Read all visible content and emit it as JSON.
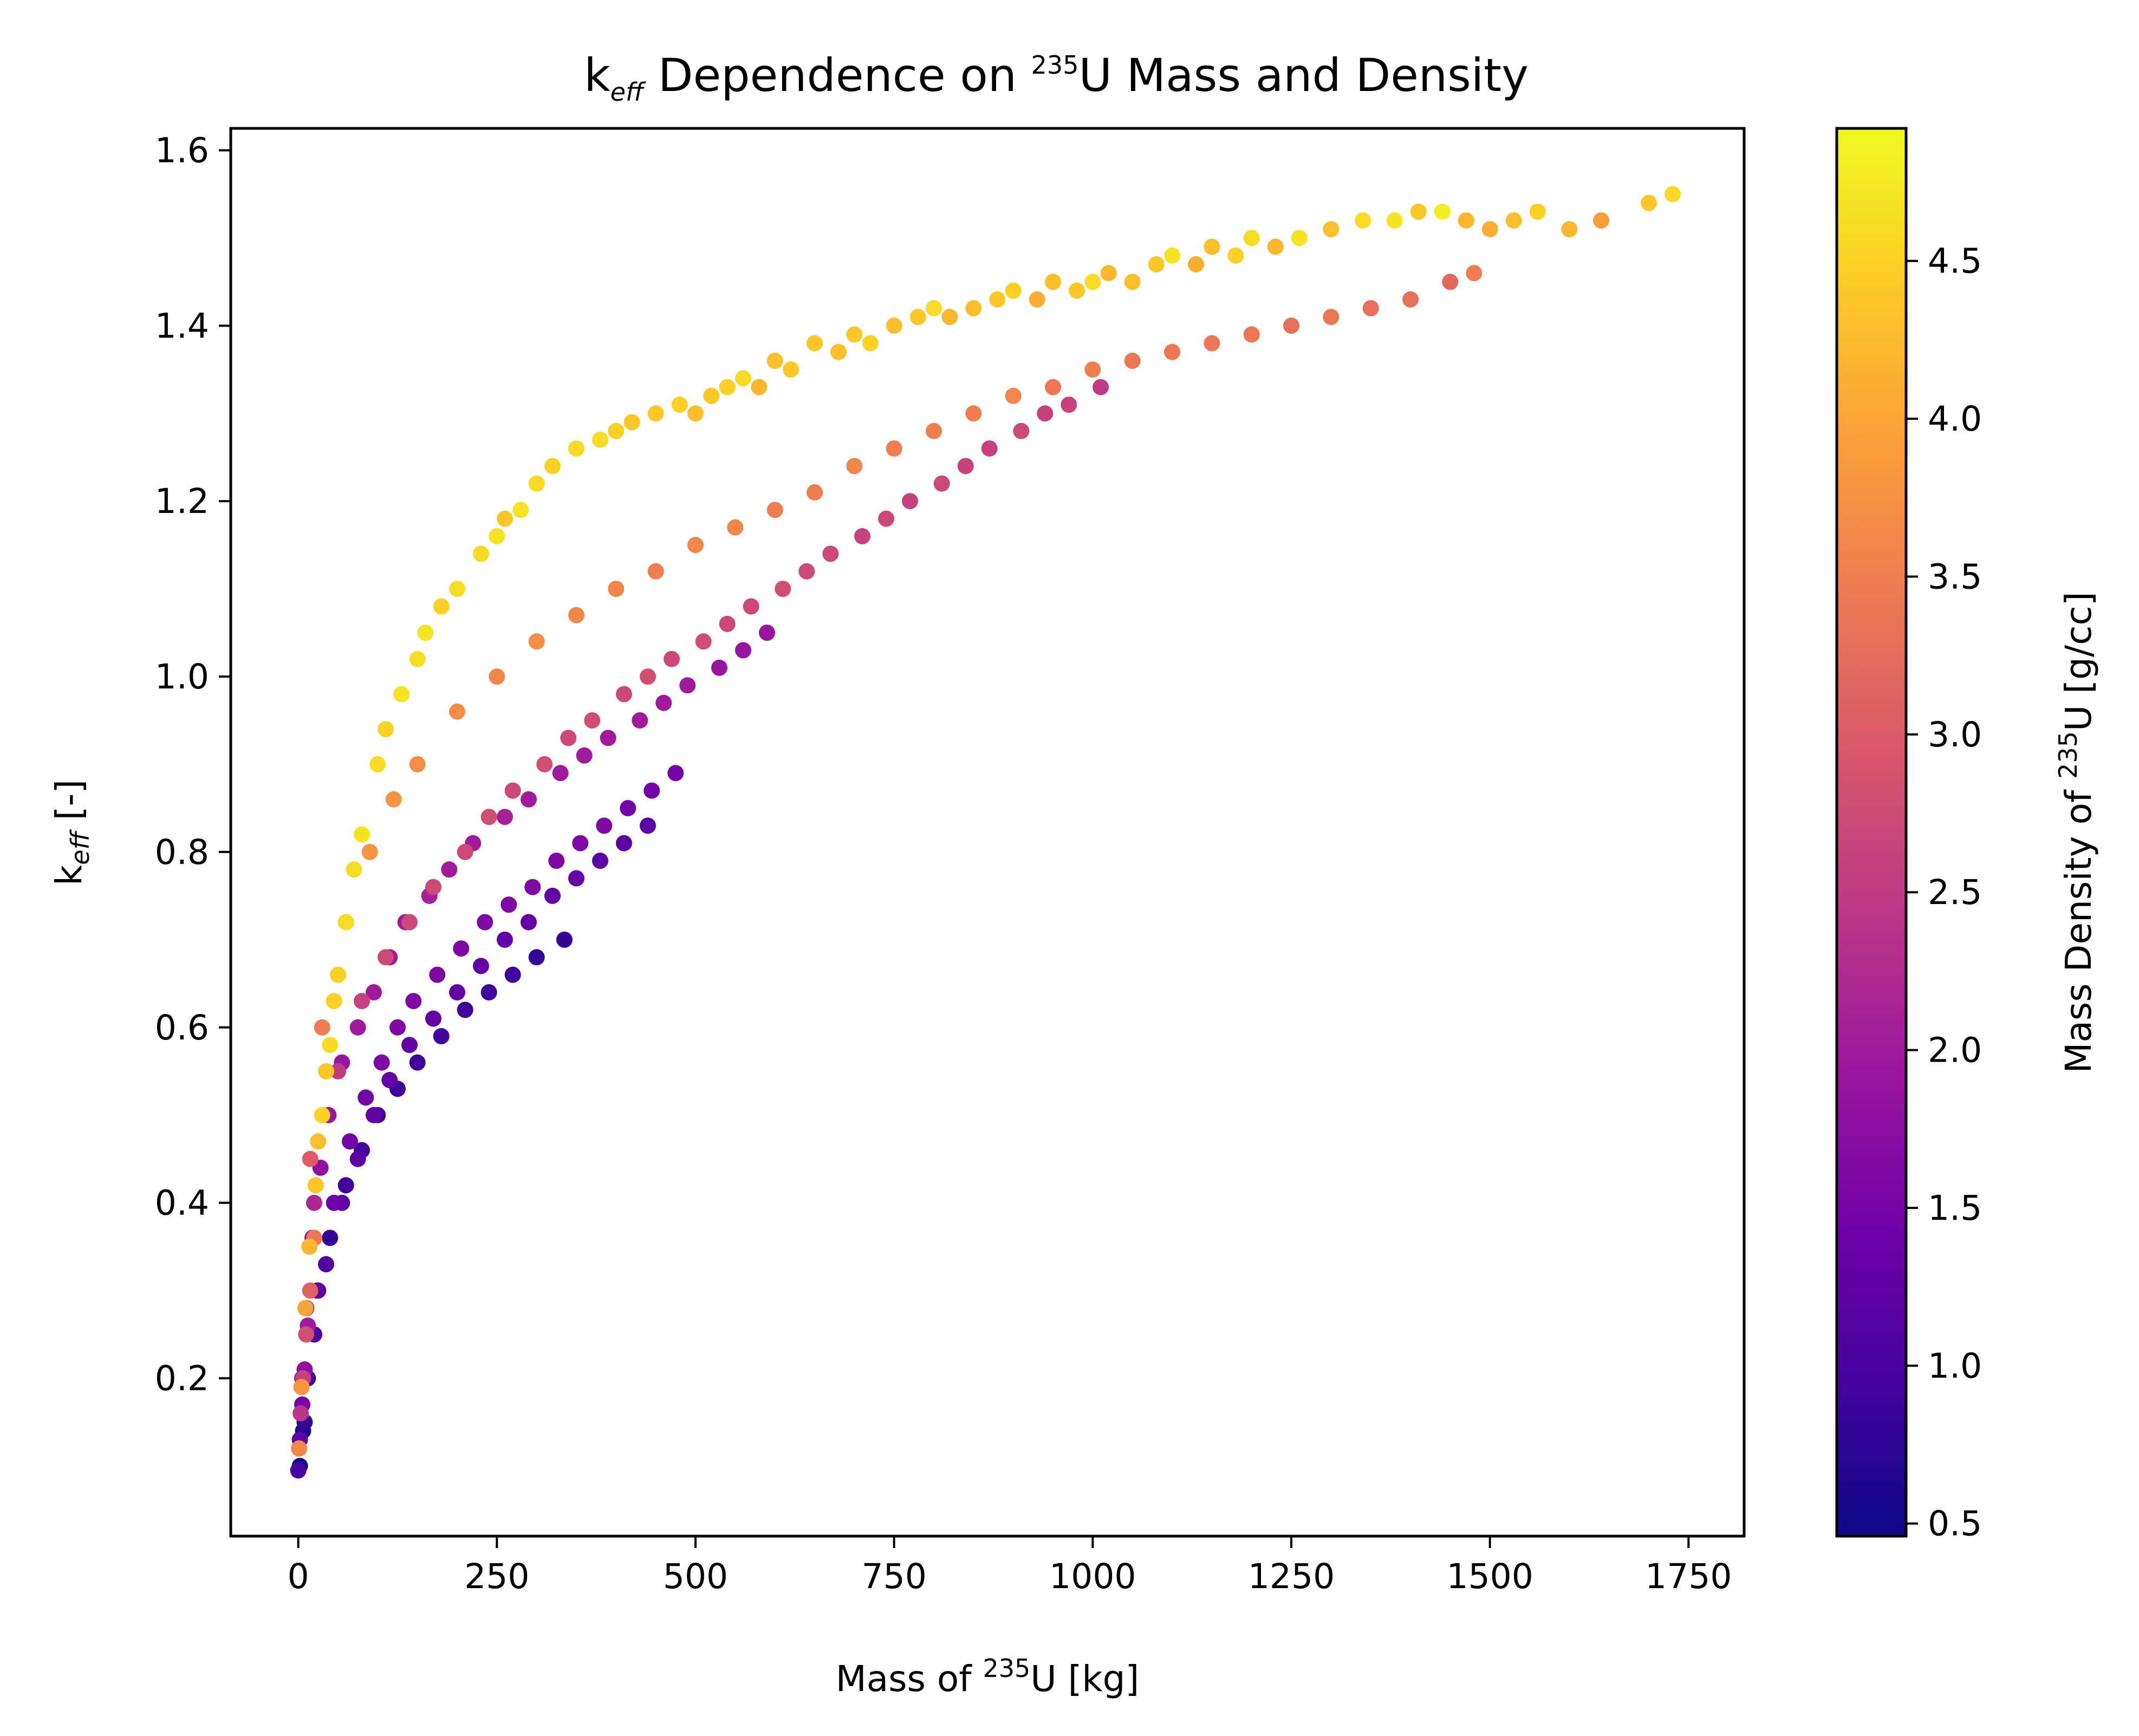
{
  "chart_data": {
    "type": "scatter",
    "title": {
      "prefix": "k",
      "prefix_sub": "eff",
      "middle": " Dependence on ",
      "sup": "235",
      "suffix": "U Mass and Density"
    },
    "xlabel": {
      "prefix": "Mass of ",
      "sup": "235",
      "suffix": "U [kg]"
    },
    "ylabel": {
      "prefix": "k",
      "sub": "eff",
      "suffix": " [-]"
    },
    "colorbar_label": {
      "prefix": "Mass Density of ",
      "sup": "235",
      "suffix": "U [g/cc]"
    },
    "xlim": [
      -85,
      1820
    ],
    "ylim": [
      0.02,
      1.625
    ],
    "xticks": [
      "0",
      "250",
      "500",
      "750",
      "1000",
      "1250",
      "1500",
      "1750"
    ],
    "xtick_values": [
      0,
      250,
      500,
      750,
      1000,
      1250,
      1500,
      1750
    ],
    "yticks": [
      "0.2",
      "0.4",
      "0.6",
      "0.8",
      "1.0",
      "1.2",
      "1.4",
      "1.6"
    ],
    "ytick_values": [
      0.2,
      0.4,
      0.6,
      0.8,
      1.0,
      1.2,
      1.4,
      1.6
    ],
    "colorbar": {
      "colormap": "plasma",
      "range": [
        0.46,
        4.92
      ],
      "ticks": [
        "0.5",
        "1.0",
        "1.5",
        "2.0",
        "2.5",
        "3.0",
        "3.5",
        "4.0",
        "4.5"
      ],
      "tick_values": [
        0.5,
        1.0,
        1.5,
        2.0,
        2.5,
        3.0,
        3.5,
        4.0,
        4.5
      ],
      "stops": [
        "#0d0887",
        "#46039f",
        "#7201a8",
        "#9c179e",
        "#bd3786",
        "#d8576b",
        "#ed7953",
        "#fb9f3a",
        "#fdca26",
        "#f0f921"
      ]
    },
    "grid": false,
    "series": [
      {
        "x": [
          0,
          2,
          5,
          8,
          12,
          3,
          6,
          10,
          15,
          20,
          1,
          4,
          9,
          14,
          22,
          30,
          40,
          25,
          35,
          50,
          60,
          80,
          45,
          70,
          100,
          130,
          160,
          110,
          150,
          200,
          250,
          180,
          230,
          280,
          300,
          320,
          350,
          260,
          400,
          420,
          380,
          450,
          480,
          500,
          520,
          540,
          560,
          580,
          600,
          620,
          650,
          680,
          700,
          720,
          750,
          780,
          800,
          820,
          850,
          880,
          900,
          930,
          950,
          980,
          1000,
          1020,
          1050,
          1080,
          1100,
          1130,
          1150,
          1180,
          1200,
          1230,
          1260,
          1300,
          1340,
          1380,
          1410,
          1440,
          1470,
          1500,
          1530,
          1560,
          1600,
          1640,
          1700,
          1730,
          15,
          30,
          60,
          90,
          120,
          150,
          200,
          250,
          300,
          350,
          400,
          450,
          500,
          550,
          600,
          650,
          700,
          750,
          800,
          850,
          900,
          950,
          1000,
          1050,
          1100,
          1150,
          1200,
          1250,
          1300,
          1350,
          1400,
          1450,
          1480,
          20,
          50,
          80,
          110,
          140,
          170,
          210,
          240,
          270,
          310,
          340,
          370,
          410,
          440,
          470,
          510,
          540,
          570,
          610,
          640,
          670,
          710,
          740,
          770,
          810,
          840,
          870,
          910,
          940,
          970,
          1010,
          5,
          10,
          18,
          28,
          38,
          55,
          75,
          95,
          115,
          135,
          165,
          190,
          220,
          260,
          290,
          330,
          360,
          390,
          430,
          460,
          490,
          530,
          560,
          590,
          10,
          25,
          45,
          65,
          85,
          105,
          125,
          145,
          175,
          205,
          235,
          265,
          295,
          325,
          355,
          385,
          415,
          445,
          475,
          8,
          20,
          35,
          55,
          75,
          95,
          115,
          140,
          170,
          200,
          230,
          260,
          290,
          320,
          350,
          380,
          410,
          440,
          2,
          6,
          12,
          24,
          40,
          60,
          80,
          100,
          125,
          150,
          180,
          210,
          240,
          270,
          300,
          335
        ],
        "y": [
          0.095,
          0.13,
          0.17,
          0.21,
          0.26,
          0.16,
          0.2,
          0.25,
          0.3,
          0.36,
          0.12,
          0.19,
          0.28,
          0.35,
          0.42,
          0.5,
          0.58,
          0.47,
          0.55,
          0.66,
          0.72,
          0.82,
          0.63,
          0.78,
          0.9,
          0.98,
          1.05,
          0.94,
          1.02,
          1.1,
          1.16,
          1.08,
          1.14,
          1.19,
          1.22,
          1.24,
          1.26,
          1.18,
          1.28,
          1.29,
          1.27,
          1.3,
          1.31,
          1.3,
          1.32,
          1.33,
          1.34,
          1.33,
          1.36,
          1.35,
          1.38,
          1.37,
          1.39,
          1.38,
          1.4,
          1.41,
          1.42,
          1.41,
          1.42,
          1.43,
          1.44,
          1.43,
          1.45,
          1.44,
          1.45,
          1.46,
          1.45,
          1.47,
          1.48,
          1.47,
          1.49,
          1.48,
          1.5,
          1.49,
          1.5,
          1.51,
          1.52,
          1.52,
          1.53,
          1.53,
          1.52,
          1.51,
          1.52,
          1.53,
          1.51,
          1.52,
          1.54,
          1.55,
          0.45,
          0.6,
          0.72,
          0.8,
          0.86,
          0.9,
          0.96,
          1.0,
          1.04,
          1.07,
          1.1,
          1.12,
          1.15,
          1.17,
          1.19,
          1.21,
          1.24,
          1.26,
          1.28,
          1.3,
          1.32,
          1.33,
          1.35,
          1.36,
          1.37,
          1.38,
          1.39,
          1.4,
          1.41,
          1.42,
          1.43,
          1.45,
          1.46,
          0.4,
          0.55,
          0.63,
          0.68,
          0.72,
          0.76,
          0.8,
          0.84,
          0.87,
          0.9,
          0.93,
          0.95,
          0.98,
          1.0,
          1.02,
          1.04,
          1.06,
          1.08,
          1.1,
          1.12,
          1.14,
          1.16,
          1.18,
          1.2,
          1.22,
          1.24,
          1.26,
          1.28,
          1.3,
          1.31,
          1.33,
          0.2,
          0.28,
          0.36,
          0.44,
          0.5,
          0.56,
          0.6,
          0.64,
          0.68,
          0.72,
          0.75,
          0.78,
          0.81,
          0.84,
          0.86,
          0.89,
          0.91,
          0.93,
          0.95,
          0.97,
          0.99,
          1.01,
          1.03,
          1.05,
          0.2,
          0.3,
          0.4,
          0.47,
          0.52,
          0.56,
          0.6,
          0.63,
          0.66,
          0.69,
          0.72,
          0.74,
          0.76,
          0.79,
          0.81,
          0.83,
          0.85,
          0.87,
          0.89,
          0.15,
          0.25,
          0.33,
          0.4,
          0.45,
          0.5,
          0.54,
          0.58,
          0.61,
          0.64,
          0.67,
          0.7,
          0.72,
          0.75,
          0.77,
          0.79,
          0.81,
          0.83,
          0.1,
          0.14,
          0.2,
          0.3,
          0.36,
          0.42,
          0.46,
          0.5,
          0.53,
          0.56,
          0.59,
          0.62,
          0.64,
          0.66,
          0.68,
          0.7
        ],
        "density": [
          1.0,
          1.2,
          1.5,
          1.8,
          2.0,
          2.4,
          2.6,
          2.8,
          3.1,
          3.4,
          3.6,
          3.8,
          4.0,
          4.2,
          4.4,
          4.5,
          4.6,
          4.3,
          4.4,
          4.5,
          4.6,
          4.7,
          4.5,
          4.6,
          4.6,
          4.7,
          4.7,
          4.5,
          4.6,
          4.6,
          4.7,
          4.5,
          4.6,
          4.7,
          4.6,
          4.5,
          4.6,
          4.4,
          4.5,
          4.4,
          4.6,
          4.4,
          4.5,
          4.3,
          4.4,
          4.5,
          4.6,
          4.2,
          4.3,
          4.4,
          4.4,
          4.3,
          4.4,
          4.5,
          4.3,
          4.4,
          4.6,
          4.2,
          4.3,
          4.4,
          4.5,
          4.1,
          4.3,
          4.4,
          4.6,
          4.2,
          4.3,
          4.4,
          4.7,
          4.1,
          4.3,
          4.5,
          4.6,
          4.2,
          4.7,
          4.3,
          4.6,
          4.7,
          4.4,
          4.8,
          4.2,
          4.1,
          4.3,
          4.5,
          4.2,
          3.9,
          4.4,
          4.6,
          3.0,
          3.5,
          3.7,
          3.8,
          3.8,
          3.7,
          3.7,
          3.6,
          3.7,
          3.6,
          3.6,
          3.5,
          3.6,
          3.6,
          3.5,
          3.5,
          3.6,
          3.5,
          3.5,
          3.5,
          3.6,
          3.4,
          3.5,
          3.4,
          3.4,
          3.4,
          3.4,
          3.3,
          3.4,
          3.3,
          3.3,
          3.2,
          3.5,
          2.2,
          2.5,
          2.6,
          2.7,
          2.7,
          2.7,
          2.7,
          2.8,
          2.7,
          2.8,
          2.7,
          2.8,
          2.7,
          2.8,
          2.7,
          2.8,
          2.7,
          2.7,
          2.8,
          2.7,
          2.7,
          2.6,
          2.7,
          2.6,
          2.7,
          2.6,
          2.6,
          2.7,
          2.6,
          2.6,
          2.5,
          1.2,
          1.5,
          1.7,
          1.8,
          1.9,
          1.9,
          2.0,
          2.0,
          2.0,
          2.0,
          2.1,
          2.0,
          2.0,
          2.1,
          2.0,
          2.0,
          2.0,
          2.0,
          2.0,
          2.0,
          2.0,
          1.9,
          1.9,
          1.9,
          1.0,
          1.2,
          1.4,
          1.5,
          1.5,
          1.6,
          1.6,
          1.6,
          1.6,
          1.6,
          1.6,
          1.6,
          1.6,
          1.6,
          1.6,
          1.6,
          1.5,
          1.5,
          1.5,
          0.8,
          1.0,
          1.1,
          1.2,
          1.2,
          1.3,
          1.3,
          1.3,
          1.3,
          1.3,
          1.3,
          1.3,
          1.3,
          1.3,
          1.3,
          1.2,
          1.2,
          1.2,
          0.5,
          0.6,
          0.7,
          0.8,
          0.8,
          0.9,
          0.9,
          0.9,
          0.9,
          0.9,
          0.9,
          0.9,
          0.9,
          0.9,
          0.8,
          0.8
        ]
      }
    ]
  }
}
